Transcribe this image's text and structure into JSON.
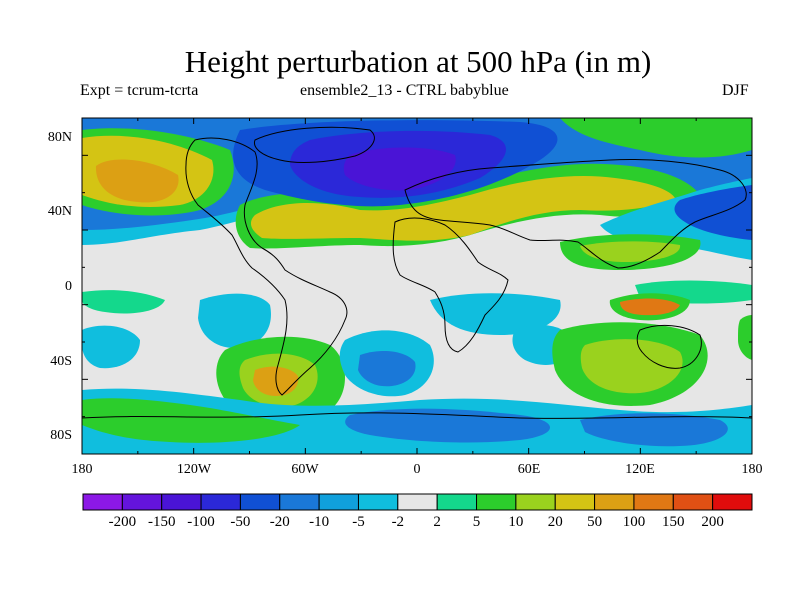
{
  "title": "Height perturbation at 500 hPa (in m)",
  "subtitle_left": "Expt = tcrum-tcrta",
  "subtitle_center": "ensemble2_13 - CTRL babyblue",
  "subtitle_right": "DJF",
  "y_axis": {
    "labels": [
      "80N",
      "40N",
      "0",
      "40S",
      "80S"
    ]
  },
  "x_axis": {
    "labels": [
      "180",
      "120W",
      "60W",
      "0",
      "60E",
      "120E",
      "180"
    ]
  },
  "colorbar": {
    "colors": [
      "#8c18e6",
      "#6414dc",
      "#4a14d6",
      "#2b28d8",
      "#1050d4",
      "#1a78d8",
      "#10a0dc",
      "#10bede",
      "#e6e6e6",
      "#14d88c",
      "#2ccd2c",
      "#9ad21e",
      "#d4c414",
      "#dca014",
      "#e07814",
      "#e05014",
      "#e00c0c"
    ],
    "labels": [
      "-200",
      "-150",
      "-100",
      "-50",
      "-20",
      "-10",
      "-5",
      "-2",
      "2",
      "5",
      "10",
      "20",
      "50",
      "100",
      "150",
      "200"
    ]
  }
}
